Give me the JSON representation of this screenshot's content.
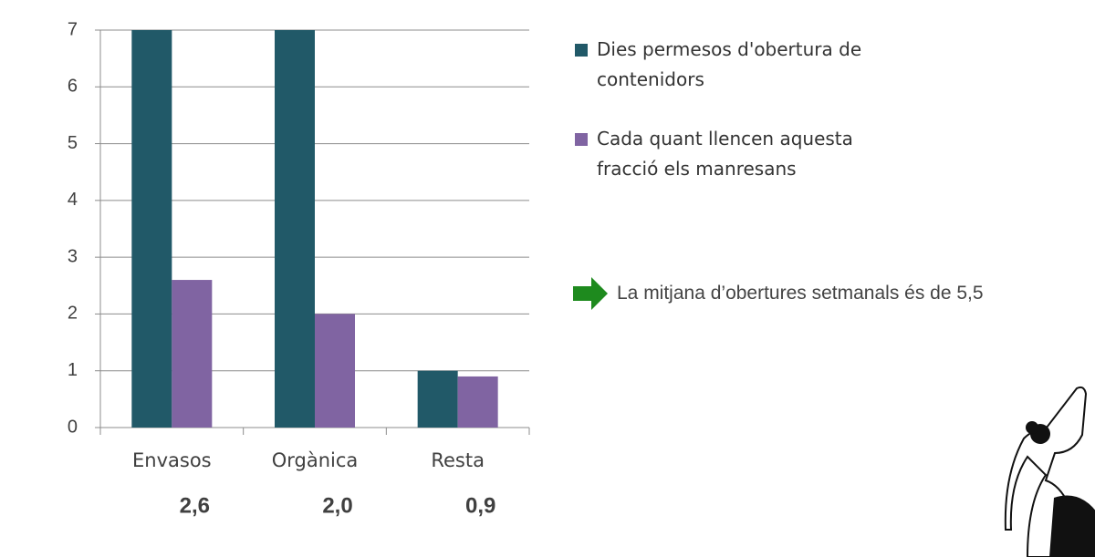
{
  "chart_data": {
    "type": "bar",
    "categories": [
      "Envasos",
      "Orgànica",
      "Resta"
    ],
    "series": [
      {
        "name": "Dies permesos d'obertura de contenidors",
        "color": "#215968",
        "values": [
          7,
          7,
          1
        ]
      },
      {
        "name": "Cada quant llencen aquesta fracció els manresans",
        "color": "#8064a2",
        "values": [
          2.6,
          2.0,
          0.9
        ],
        "value_labels": [
          "2,6",
          "2,0",
          "0,9"
        ]
      }
    ],
    "ylim": [
      0,
      7
    ],
    "yticks": [
      0,
      1,
      2,
      3,
      4,
      5,
      6,
      7
    ],
    "grid": true,
    "legend": "right",
    "annotation": "La mitjana d’obertures setmanals és de 5,5"
  }
}
